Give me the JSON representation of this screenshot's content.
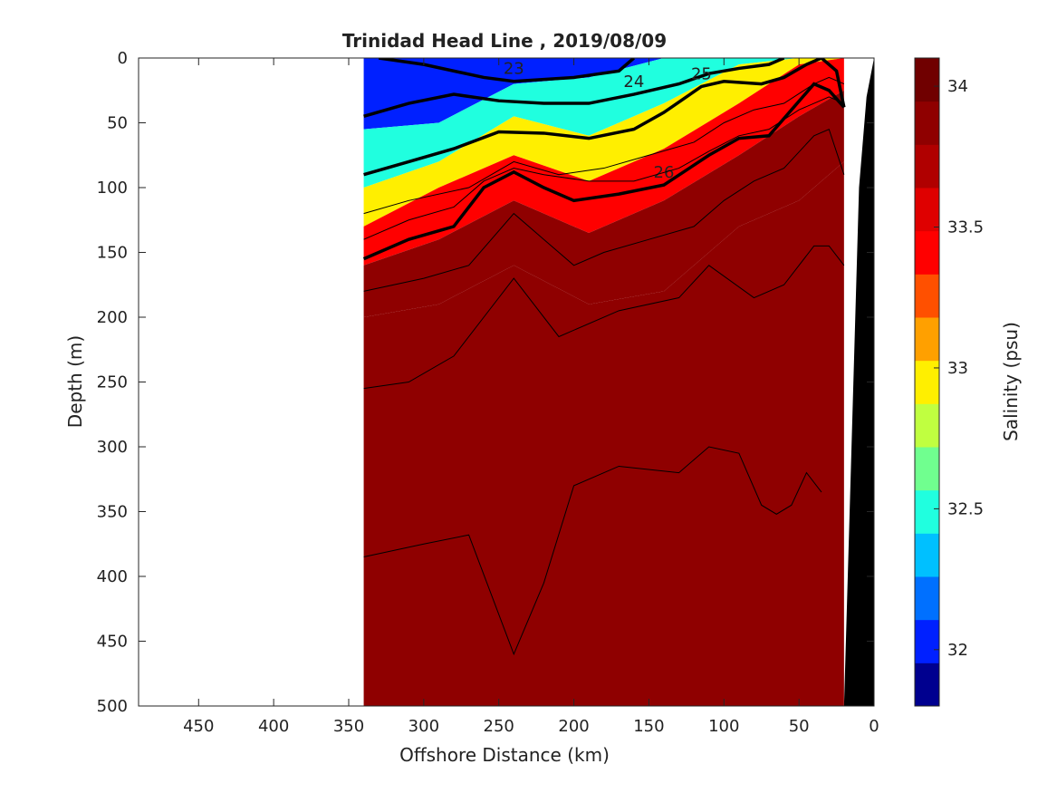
{
  "chart_data": {
    "type": "heatmap",
    "title": "Trinidad Head Line , 2019/08/09",
    "xlabel": "Offshore Distance (km)",
    "ylabel": "Depth (m)",
    "colorbar_label": "Salinity (psu)",
    "xlim": [
      490,
      0
    ],
    "ylim": [
      500,
      0
    ],
    "clim": [
      31.8,
      34.1
    ],
    "x_ticks": [
      450,
      400,
      350,
      300,
      250,
      200,
      150,
      100,
      50,
      0
    ],
    "y_ticks": [
      0,
      50,
      100,
      150,
      200,
      250,
      300,
      350,
      400,
      450,
      500
    ],
    "colorbar_ticks": [
      32,
      32.5,
      33,
      33.5,
      34
    ],
    "x_ticklabels": [
      "450",
      "400",
      "350",
      "300",
      "250",
      "200",
      "150",
      "100",
      "50",
      "0"
    ],
    "y_ticklabels": [
      "0",
      "50",
      "100",
      "150",
      "200",
      "250",
      "300",
      "350",
      "400",
      "450",
      "500"
    ],
    "colorbar_ticklabels": [
      "32",
      "32.5",
      "33",
      "33.5",
      "34"
    ],
    "colormap": [
      "#00008f",
      "#0020ff",
      "#0070ff",
      "#00c0ff",
      "#20ffdf",
      "#70ff8f",
      "#c0ff40",
      "#ffef00",
      "#ffa000",
      "#ff5000",
      "#ff0000",
      "#df0000",
      "#b00000",
      "#8f0000",
      "#700000"
    ],
    "section_x_range_km": [
      340,
      20
    ],
    "salinity_profiles": {
      "x_km": [
        340,
        290,
        240,
        190,
        140,
        90,
        50,
        20
      ],
      "layers": [
        {
          "salinity": 32.0,
          "depth_top": [
            0,
            0,
            0,
            0,
            0,
            0,
            0,
            0
          ],
          "depth_bottom": [
            55,
            50,
            20,
            15,
            0,
            0,
            0,
            0
          ]
        },
        {
          "salinity": 32.5,
          "depth_top": [
            55,
            50,
            20,
            15,
            0,
            0,
            0,
            0
          ],
          "depth_bottom": [
            100,
            80,
            45,
            60,
            35,
            5,
            0,
            0
          ]
        },
        {
          "salinity": 33.0,
          "depth_top": [
            100,
            80,
            45,
            60,
            35,
            5,
            0,
            0
          ],
          "depth_bottom": [
            130,
            100,
            75,
            95,
            70,
            35,
            5,
            0
          ]
        },
        {
          "salinity": 33.5,
          "depth_top": [
            130,
            100,
            75,
            95,
            70,
            35,
            5,
            0
          ],
          "depth_bottom": [
            160,
            140,
            110,
            135,
            110,
            75,
            45,
            25
          ]
        },
        {
          "salinity": 33.9,
          "depth_top": [
            160,
            140,
            110,
            135,
            110,
            75,
            45,
            25
          ],
          "depth_bottom": [
            200,
            190,
            160,
            190,
            180,
            130,
            110,
            80
          ]
        },
        {
          "salinity": 34.0,
          "depth_top": [
            200,
            190,
            160,
            190,
            180,
            130,
            110,
            80
          ],
          "depth_bottom": [
            500,
            500,
            500,
            500,
            500,
            500,
            500,
            500
          ]
        }
      ]
    },
    "density_contours": [
      {
        "label": "23",
        "thick": true,
        "x_km": [
          330,
          300,
          260,
          240,
          200,
          170,
          160
        ],
        "depth": [
          0,
          5,
          15,
          18,
          15,
          10,
          0
        ]
      },
      {
        "label": "24",
        "thick": true,
        "x_km": [
          340,
          310,
          280,
          250,
          220,
          190,
          160,
          130,
          110,
          90,
          70,
          60
        ],
        "depth": [
          45,
          35,
          28,
          33,
          35,
          35,
          28,
          20,
          12,
          8,
          5,
          0
        ]
      },
      {
        "label": "25",
        "thick": true,
        "x_km": [
          340,
          310,
          280,
          250,
          220,
          190,
          160,
          140,
          115,
          100,
          75,
          60,
          45,
          35,
          25,
          20
        ],
        "depth": [
          90,
          80,
          70,
          57,
          58,
          62,
          55,
          42,
          22,
          18,
          20,
          15,
          5,
          0,
          10,
          38
        ]
      },
      {
        "label": "26",
        "thick": true,
        "x_km": [
          340,
          310,
          280,
          260,
          240,
          220,
          200,
          170,
          140,
          110,
          90,
          70,
          55,
          40,
          30,
          20
        ],
        "depth": [
          155,
          140,
          130,
          100,
          88,
          100,
          110,
          105,
          98,
          75,
          62,
          60,
          40,
          20,
          25,
          38
        ]
      },
      {
        "label": "",
        "thick": false,
        "x_km": [
          340,
          310,
          270,
          240,
          210,
          180,
          150,
          120,
          100,
          80,
          60,
          40,
          30,
          20
        ],
        "depth": [
          120,
          110,
          100,
          80,
          90,
          85,
          75,
          65,
          50,
          40,
          35,
          20,
          15,
          20
        ]
      },
      {
        "label": "",
        "thick": false,
        "x_km": [
          340,
          310,
          280,
          260,
          240,
          220,
          190,
          160,
          130,
          110,
          90,
          70,
          50,
          30,
          20
        ],
        "depth": [
          140,
          125,
          115,
          95,
          85,
          90,
          95,
          95,
          85,
          72,
          60,
          55,
          40,
          30,
          35
        ]
      },
      {
        "label": "",
        "thick": false,
        "x_km": [
          340,
          300,
          270,
          240,
          220,
          200,
          180,
          150,
          120,
          100,
          80,
          60,
          40,
          30,
          20
        ],
        "depth": [
          180,
          170,
          160,
          120,
          140,
          160,
          150,
          140,
          130,
          110,
          95,
          85,
          60,
          55,
          90
        ]
      },
      {
        "label": "",
        "thick": false,
        "x_km": [
          340,
          310,
          280,
          260,
          240,
          210,
          170,
          130,
          110,
          80,
          60,
          40,
          30,
          20
        ],
        "depth": [
          255,
          250,
          230,
          200,
          170,
          215,
          195,
          185,
          160,
          185,
          175,
          145,
          145,
          160
        ]
      },
      {
        "label": "",
        "thick": false,
        "x_km": [
          340,
          300,
          270,
          240,
          220,
          200,
          170,
          130,
          110,
          90,
          75,
          65,
          55,
          45,
          35
        ],
        "depth": [
          385,
          375,
          368,
          460,
          405,
          330,
          315,
          320,
          300,
          305,
          345,
          352,
          345,
          320,
          335
        ]
      }
    ],
    "contour_labels_shown": [
      "23",
      "24",
      "24",
      "25",
      "25",
      "26",
      "26"
    ]
  }
}
